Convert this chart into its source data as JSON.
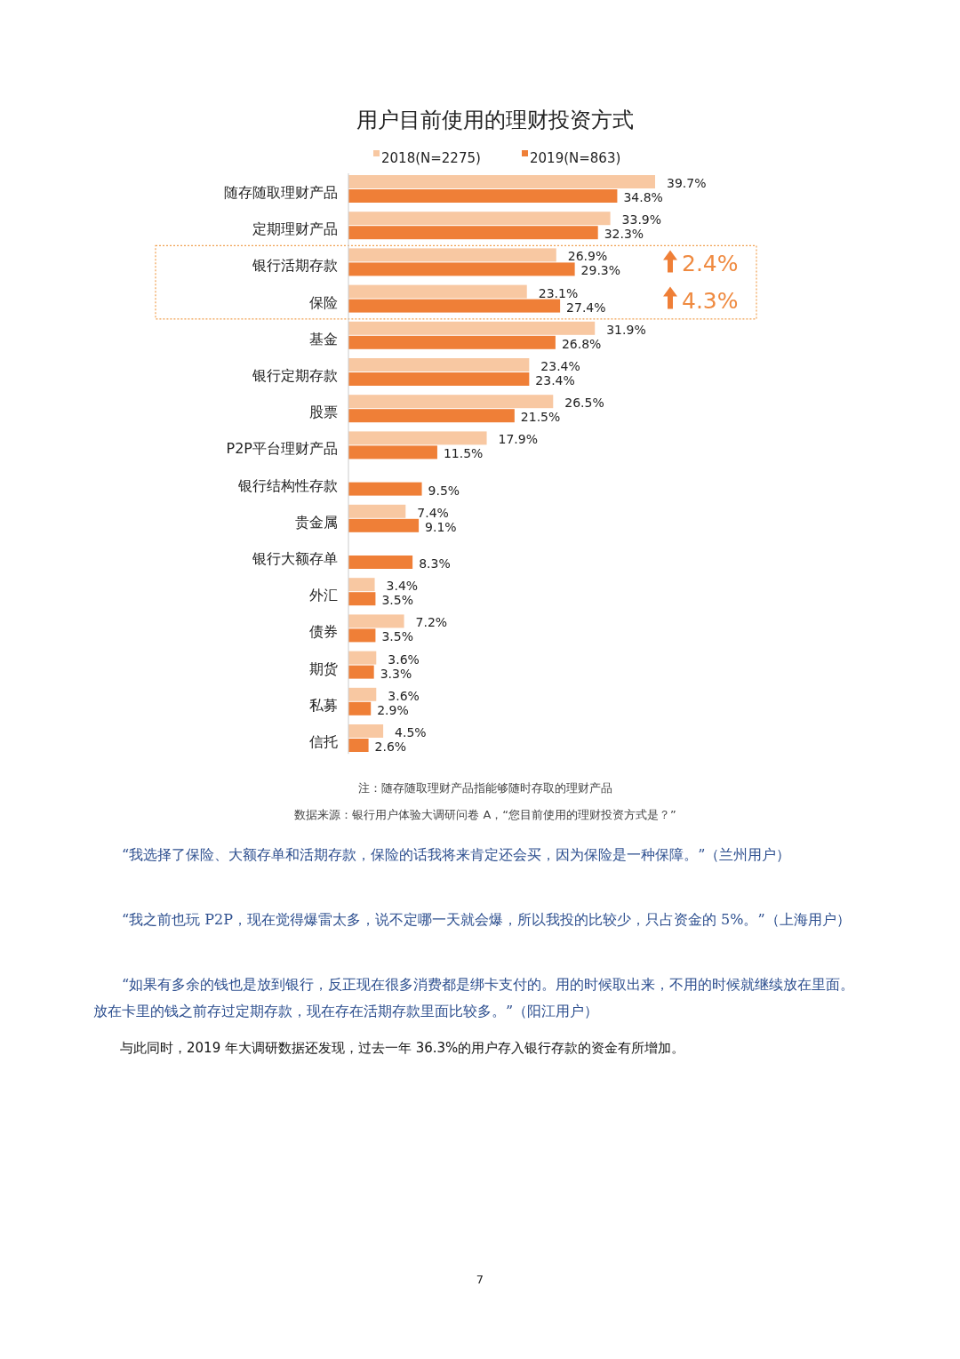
{
  "chart_data": {
    "type": "bar",
    "orientation": "horizontal",
    "title": "用户目前使用的理财投资方式",
    "categories": [
      "随存随取理财产品",
      "定期理财产品",
      "银行活期存款",
      "保险",
      "基金",
      "银行定期存款",
      "股票",
      "P2P平台理财产品",
      "银行结构性存款",
      "贵金属",
      "银行大额存单",
      "外汇",
      "债券",
      "期货",
      "私募",
      "信托"
    ],
    "series": [
      {
        "name": "2018(N=2275)",
        "color": "#f8c8a2",
        "values": [
          39.7,
          33.9,
          26.9,
          23.1,
          31.9,
          23.4,
          26.5,
          17.9,
          null,
          7.4,
          null,
          3.4,
          7.2,
          3.6,
          3.6,
          4.5
        ],
        "value_labels": [
          "39.7%",
          "33.9%",
          "26.9%",
          "23.1%",
          "31.9%",
          "23.4%",
          "26.5%",
          "17.9%",
          null,
          "7.4%",
          null,
          "3.4%",
          "7.2%",
          "3.6%",
          "3.6%",
          "4.5%"
        ]
      },
      {
        "name": "2019(N=863)",
        "color": "#ef7f37",
        "values": [
          34.8,
          32.3,
          29.3,
          27.4,
          26.8,
          23.4,
          21.5,
          11.5,
          9.5,
          9.1,
          8.3,
          3.5,
          3.5,
          3.3,
          2.9,
          2.6
        ],
        "value_labels": [
          "34.8%",
          "32.3%",
          "29.3%",
          "27.4%",
          "26.8%",
          "23.4%",
          "21.5%",
          "11.5%",
          "9.5%",
          "9.1%",
          "8.3%",
          "3.5%",
          "3.5%",
          "3.3%",
          "2.9%",
          "2.6%"
        ]
      }
    ],
    "legend": "top",
    "annotations": [
      "2.4%",
      "4.3%",
      "注：随存随取理财产品指能够随时存取的理财产品",
      "数据来源：银行用户体验大调研问卷 A，“您目前使用的理财投资方式是？”",
      "“我选择了保险、大额存单和活期存款，保险的话我将来肯定还会买，因为保险是一种保障。”（兰州用户）",
      "“我之前也玩 P2P，现在觉得爆雷太多，说不定哪一天就会爆，所以我投的比较少，只占资金的 5%。”（上海用户）",
      "“如果有多余的钱也是放到银行，反正现在很多消费都是绑卡支付的。用的时候取出来，不用的时候就继续放在里面。放在卡里的钱之前存过定期存款，现在存在活期存款里面比较多。”（阳江用户）",
      "与此同时，2019 年大调研数据还发现，过去一年 36.3%的用户存入银行存款的资金有所增加。",
      "7"
    ]
  }
}
